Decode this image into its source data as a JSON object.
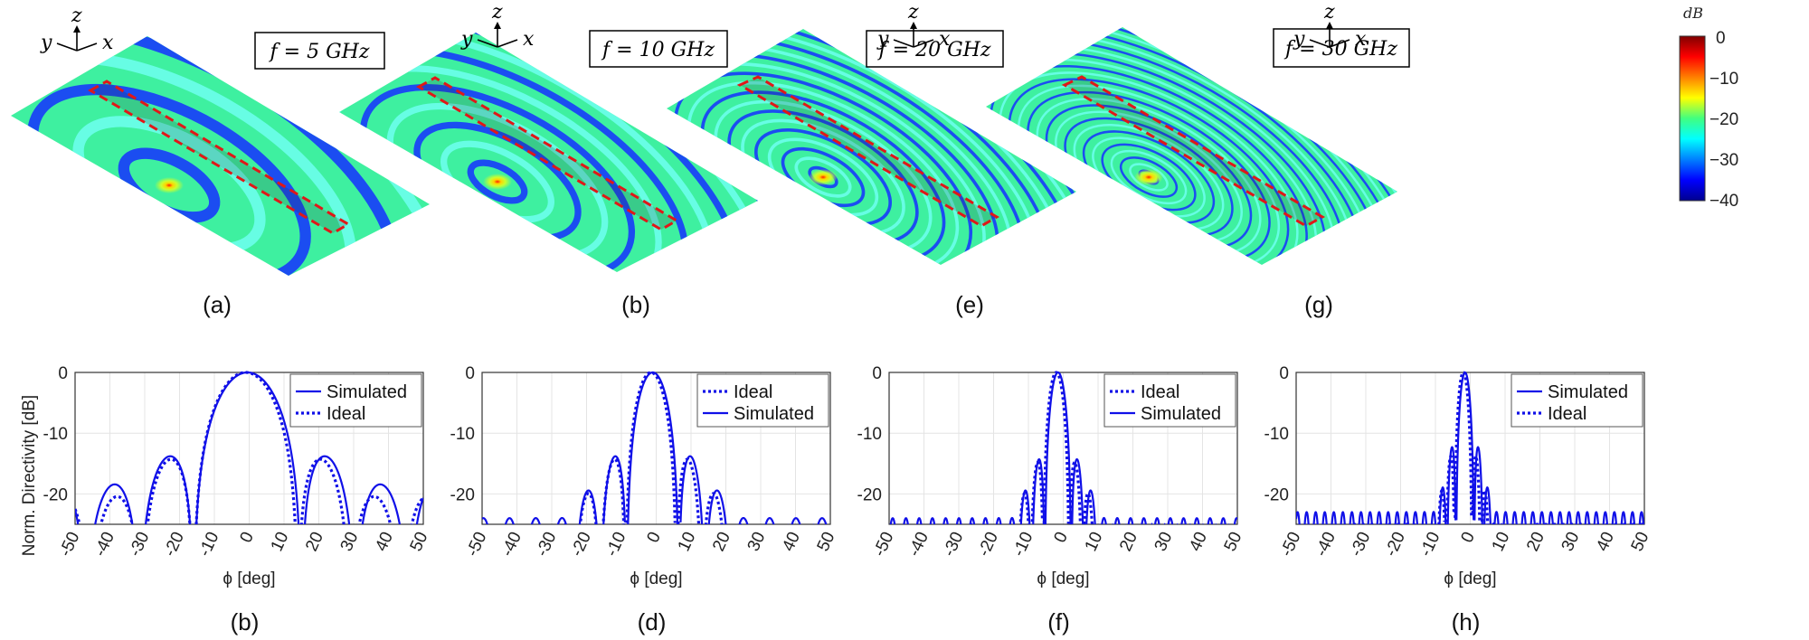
{
  "colorbar": {
    "unit": "dB",
    "ticks": [
      "0",
      "−10",
      "−20",
      "−30",
      "−40"
    ],
    "range": [
      -40,
      0
    ],
    "colormap": "jet"
  },
  "top_panels": [
    {
      "label": "(a)",
      "freq_text": "f = 5 GHz",
      "freq_ghz": 5,
      "axes": {
        "z": "z",
        "y": "y",
        "x": "x"
      }
    },
    {
      "label": "(b)",
      "freq_text": "f = 10 GHz",
      "freq_ghz": 10,
      "axes": {
        "z": "z",
        "y": "y",
        "x": "x"
      }
    },
    {
      "label": "(e)",
      "freq_text": "f = 20 GHz",
      "freq_ghz": 20,
      "axes": {
        "z": "z",
        "y": "y",
        "x": "x"
      }
    },
    {
      "label": "(g)",
      "freq_text": "f = 30 GHz",
      "freq_ghz": 30,
      "axes": {
        "z": "z",
        "y": "y",
        "x": "x"
      }
    }
  ],
  "chart_data": [
    {
      "type": "line",
      "label": "(b)",
      "xlabel": "ϕ [deg]",
      "ylabel": "Norm. Directivity [dB]",
      "xlim": [
        -50,
        50
      ],
      "ylim": [
        -25,
        0
      ],
      "xticks": [
        "-50",
        "-40",
        "-30",
        "-20",
        "-10",
        "0",
        "10",
        "20",
        "30",
        "40",
        "50"
      ],
      "yticks": [
        "0",
        "-10",
        "-20"
      ],
      "grid": true,
      "legend_position": "top-right",
      "legend": [
        {
          "name": "Simulated",
          "style": "solid"
        },
        {
          "name": "Ideal",
          "style": "dotted"
        }
      ],
      "series": [
        {
          "name": "Simulated",
          "style": "solid",
          "beamwidth_deg": 15.5,
          "peak_deg": -0.5,
          "lobe_peaks_db": [
            -14,
            -18.5
          ]
        },
        {
          "name": "Ideal",
          "style": "dotted",
          "beamwidth_deg": 15.0,
          "peak_deg": -1.0,
          "lobe_peaks_db": [
            -14.5,
            -20.5
          ]
        }
      ]
    },
    {
      "type": "line",
      "label": "(d)",
      "xlabel": "ϕ [deg]",
      "ylabel": "",
      "xlim": [
        -50,
        50
      ],
      "ylim": [
        -25,
        0
      ],
      "xticks": [
        "-50",
        "-40",
        "-30",
        "-20",
        "-10",
        "0",
        "10",
        "20",
        "30",
        "40",
        "50"
      ],
      "yticks": [
        "0",
        "-10",
        "-20"
      ],
      "grid": true,
      "legend_position": "top-right",
      "legend": [
        {
          "name": "Ideal",
          "style": "dotted"
        },
        {
          "name": "Simulated",
          "style": "solid"
        }
      ],
      "series": [
        {
          "name": "Simulated",
          "style": "solid",
          "beamwidth_deg": 7.5,
          "peak_deg": -1.0,
          "lobe_peaks_db": [
            -14,
            -19.5,
            -24
          ]
        },
        {
          "name": "Ideal",
          "style": "dotted",
          "beamwidth_deg": 7.3,
          "peak_deg": -1.5,
          "lobe_peaks_db": [
            -14.5,
            -20,
            -25
          ]
        }
      ]
    },
    {
      "type": "line",
      "label": "(f)",
      "xlabel": "ϕ [deg]",
      "ylabel": "",
      "xlim": [
        -50,
        50
      ],
      "ylim": [
        -25,
        0
      ],
      "xticks": [
        "-50",
        "-40",
        "-30",
        "-20",
        "-10",
        "0",
        "10",
        "20",
        "30",
        "40",
        "50"
      ],
      "yticks": [
        "0",
        "-10",
        "-20"
      ],
      "grid": true,
      "legend_position": "top-right",
      "legend": [
        {
          "name": "Ideal",
          "style": "dotted"
        },
        {
          "name": "Simulated",
          "style": "solid"
        }
      ],
      "series": [
        {
          "name": "Simulated",
          "style": "solid",
          "beamwidth_deg": 3.8,
          "peak_deg": -1.5,
          "lobe_peaks_db": [
            -14.5,
            -19.5,
            -24
          ]
        },
        {
          "name": "Ideal",
          "style": "dotted",
          "beamwidth_deg": 3.7,
          "peak_deg": -2.0,
          "lobe_peaks_db": [
            -15,
            -20,
            -25
          ]
        }
      ]
    },
    {
      "type": "line",
      "label": "(h)",
      "xlabel": "ϕ [deg]",
      "ylabel": "",
      "xlim": [
        -50,
        50
      ],
      "ylim": [
        -25,
        0
      ],
      "xticks": [
        "-50",
        "-40",
        "-30",
        "-20",
        "-10",
        "0",
        "10",
        "20",
        "30",
        "40",
        "50"
      ],
      "yticks": [
        "0",
        "-10",
        "-20"
      ],
      "grid": true,
      "legend_position": "top-right",
      "legend": [
        {
          "name": "Simulated",
          "style": "solid"
        },
        {
          "name": "Ideal",
          "style": "dotted"
        }
      ],
      "series": [
        {
          "name": "Simulated",
          "style": "solid",
          "beamwidth_deg": 2.6,
          "peak_deg": -1.5,
          "lobe_peaks_db": [
            -12.5,
            -19,
            -23
          ]
        },
        {
          "name": "Ideal",
          "style": "dotted",
          "beamwidth_deg": 2.5,
          "peak_deg": -2.0,
          "lobe_peaks_db": [
            -14,
            -19.5,
            -25
          ]
        }
      ]
    }
  ]
}
